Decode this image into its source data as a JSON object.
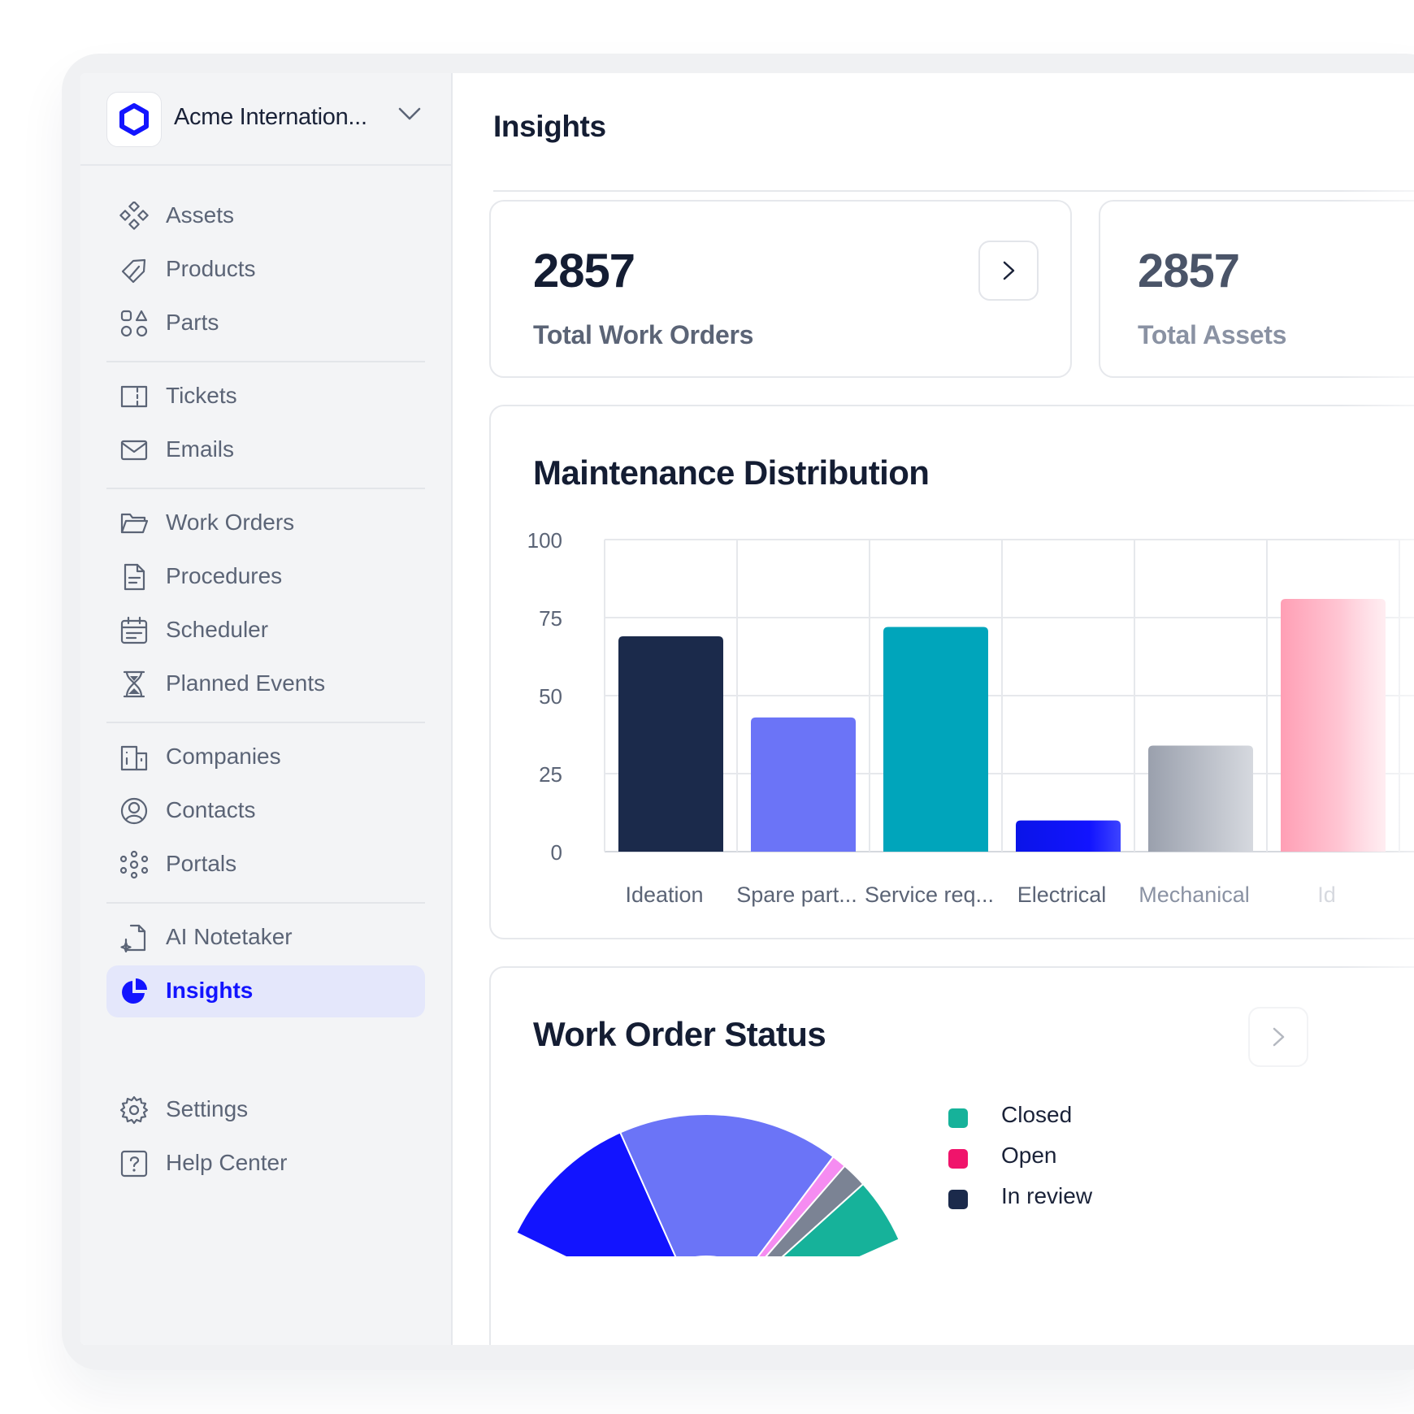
{
  "org": {
    "name": "Acme Internation..."
  },
  "sidebar": {
    "groups": [
      [
        {
          "label": "Assets",
          "icon": "assets-icon"
        },
        {
          "label": "Products",
          "icon": "tag-icon"
        },
        {
          "label": "Parts",
          "icon": "shapes-icon"
        }
      ],
      [
        {
          "label": "Tickets",
          "icon": "ticket-icon"
        },
        {
          "label": "Emails",
          "icon": "envelope-icon"
        }
      ],
      [
        {
          "label": "Work Orders",
          "icon": "folder-icon"
        },
        {
          "label": "Procedures",
          "icon": "document-icon"
        },
        {
          "label": "Scheduler",
          "icon": "calendar-icon"
        },
        {
          "label": "Planned Events",
          "icon": "hourglass-icon"
        }
      ],
      [
        {
          "label": "Companies",
          "icon": "building-icon"
        },
        {
          "label": "Contacts",
          "icon": "user-circle-icon"
        },
        {
          "label": "Portals",
          "icon": "network-icon"
        }
      ],
      [
        {
          "label": "AI Notetaker",
          "icon": "ai-note-icon"
        },
        {
          "label": "Insights",
          "icon": "pie-chart-icon",
          "active": true
        }
      ]
    ],
    "footer": [
      {
        "label": "Settings",
        "icon": "gear-icon"
      },
      {
        "label": "Help Center",
        "icon": "help-icon"
      }
    ]
  },
  "main": {
    "title": "Insights",
    "stats": [
      {
        "value": "2857",
        "label": "Total Work Orders"
      },
      {
        "value": "2857",
        "label": "Total Assets"
      }
    ],
    "maintenance": {
      "title": "Maintenance Distribution"
    },
    "status": {
      "title": "Work Order Status"
    }
  },
  "colors": {
    "accent": "#1214ff",
    "navy": "#1b2a4b",
    "periwinkle": "#6b74f7",
    "teal": "#00a5bb",
    "gray": "#a5aab5",
    "pink": "#ff3b6e"
  },
  "chart_data": [
    {
      "type": "bar",
      "title": "Maintenance Distribution",
      "categories": [
        "Ideation",
        "Spare part...",
        "Service req...",
        "Electrical",
        "Mechanical",
        "Id"
      ],
      "values": [
        69,
        43,
        72,
        10,
        34,
        81
      ],
      "colors": [
        "#1b2a4b",
        "#6b74f7",
        "#00a5bb",
        "#1214ff",
        "#a5aab5",
        "#ff7a9a"
      ],
      "ylim": [
        0,
        100
      ],
      "yticks": [
        "100",
        "75",
        "50",
        "25",
        "0"
      ],
      "grid": true
    },
    {
      "type": "pie",
      "title": "Work Order Status",
      "legend": [
        {
          "label": "Closed",
          "color": "#16b29a"
        },
        {
          "label": "Open",
          "color": "#f0146b"
        },
        {
          "label": "In review",
          "color": "#1b2a4b"
        }
      ],
      "legend_position": "right"
    }
  ]
}
